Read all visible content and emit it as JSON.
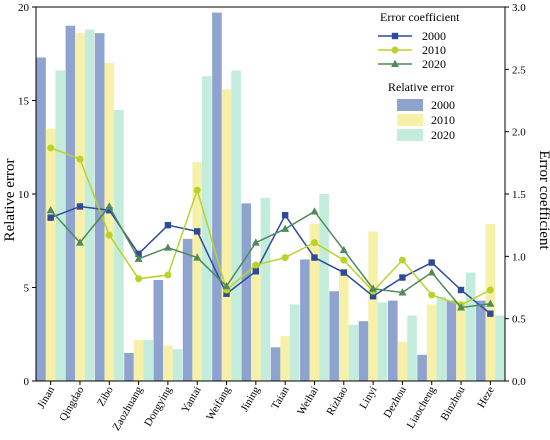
{
  "chart_data": {
    "type": "bar",
    "categories": [
      "Jinan",
      "Qingdao",
      "Zibo",
      "Zaozhuang",
      "Dongying",
      "Yantai",
      "Weifang",
      "Jining",
      "Taian",
      "Weihai",
      "Rizhao",
      "Linyi",
      "Dezhou",
      "Liaocheng",
      "Binzhou",
      "Heze"
    ],
    "ylabel_left": "Relative error",
    "ylabel_right": "Error coefficient",
    "ylim_left": [
      0,
      20
    ],
    "ylim_right": [
      0,
      3.0
    ],
    "yticks_left": [
      "0",
      "5",
      "10",
      "15",
      "20"
    ],
    "yticks_right": [
      "0.0",
      "0.5",
      "1.0",
      "1.5",
      "2.0",
      "2.5",
      "3.0"
    ],
    "bar_legend_title": "Relative error",
    "line_legend_title": "Error coefficient",
    "bar_series": [
      {
        "name": "2000",
        "color": "#8ea4cf",
        "values": [
          17.3,
          19.0,
          18.6,
          1.5,
          5.4,
          7.6,
          19.7,
          9.5,
          1.8,
          6.5,
          4.8,
          3.2,
          4.3,
          1.4,
          4.3,
          4.3
        ]
      },
      {
        "name": "2010",
        "color": "#f7f0a8",
        "values": [
          13.5,
          18.6,
          17.0,
          2.2,
          1.9,
          11.7,
          15.6,
          6.3,
          2.4,
          8.4,
          6.0,
          8.0,
          2.1,
          4.1,
          4.3,
          8.4
        ]
      },
      {
        "name": "2020",
        "color": "#c3ecdc",
        "values": [
          16.6,
          18.8,
          14.5,
          2.2,
          1.7,
          16.3,
          16.6,
          9.8,
          4.1,
          10.0,
          3.0,
          4.2,
          3.5,
          4.5,
          5.8,
          3.5
        ]
      }
    ],
    "line_series": [
      {
        "name": "2000",
        "color": "#2e4a9b",
        "marker": "square",
        "values": [
          1.31,
          1.4,
          1.37,
          1.02,
          1.25,
          1.2,
          0.7,
          0.88,
          1.33,
          0.99,
          0.87,
          0.68,
          0.83,
          0.95,
          0.73,
          0.54
        ]
      },
      {
        "name": "2010",
        "color": "#b9d32a",
        "marker": "circle",
        "values": [
          1.87,
          1.78,
          1.17,
          0.82,
          0.85,
          1.53,
          0.73,
          0.93,
          0.99,
          1.11,
          0.97,
          0.72,
          0.97,
          0.69,
          0.61,
          0.73
        ]
      },
      {
        "name": "2020",
        "color": "#4e8a5a",
        "marker": "triangle",
        "values": [
          1.37,
          1.11,
          1.4,
          0.98,
          1.07,
          0.99,
          0.76,
          1.11,
          1.22,
          1.36,
          1.05,
          0.74,
          0.71,
          0.87,
          0.59,
          0.62
        ]
      }
    ]
  }
}
